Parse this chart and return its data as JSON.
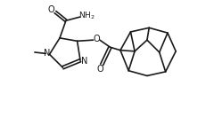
{
  "background": "#ffffff",
  "line_color": "#1a1a1a",
  "line_width": 1.2,
  "figsize": [
    2.4,
    1.41
  ],
  "dpi": 100,
  "xlim": [
    0,
    10
  ],
  "ylim": [
    0,
    6
  ]
}
